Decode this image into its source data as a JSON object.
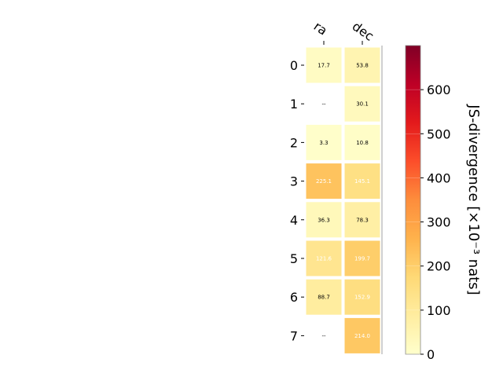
{
  "chart_data": {
    "type": "heatmap",
    "columns": [
      "ra",
      "dec"
    ],
    "rows": [
      "0",
      "1",
      "2",
      "3",
      "4",
      "5",
      "6",
      "7"
    ],
    "values": [
      [
        17.7,
        53.8
      ],
      [
        null,
        30.1
      ],
      [
        3.3,
        10.8
      ],
      [
        225.1,
        145.1
      ],
      [
        36.3,
        78.3
      ],
      [
        121.6,
        199.7
      ],
      [
        88.7,
        152.9
      ],
      [
        null,
        214.0
      ]
    ],
    "labels": [
      [
        "17.7",
        "53.8"
      ],
      [
        "--",
        "30.1"
      ],
      [
        "3.3",
        "10.8"
      ],
      [
        "225.1",
        "145.1"
      ],
      [
        "36.3",
        "78.3"
      ],
      [
        "121.6",
        "199.7"
      ],
      [
        "88.7",
        "152.9"
      ],
      [
        "--",
        "214.0"
      ]
    ],
    "colorbar": {
      "label": "JS-divergence [×10⁻³ nats]",
      "range": [
        0,
        700
      ],
      "ticks": [
        "0",
        "100",
        "200",
        "300",
        "400",
        "500",
        "600"
      ],
      "colormap": "YlOrRd"
    }
  }
}
